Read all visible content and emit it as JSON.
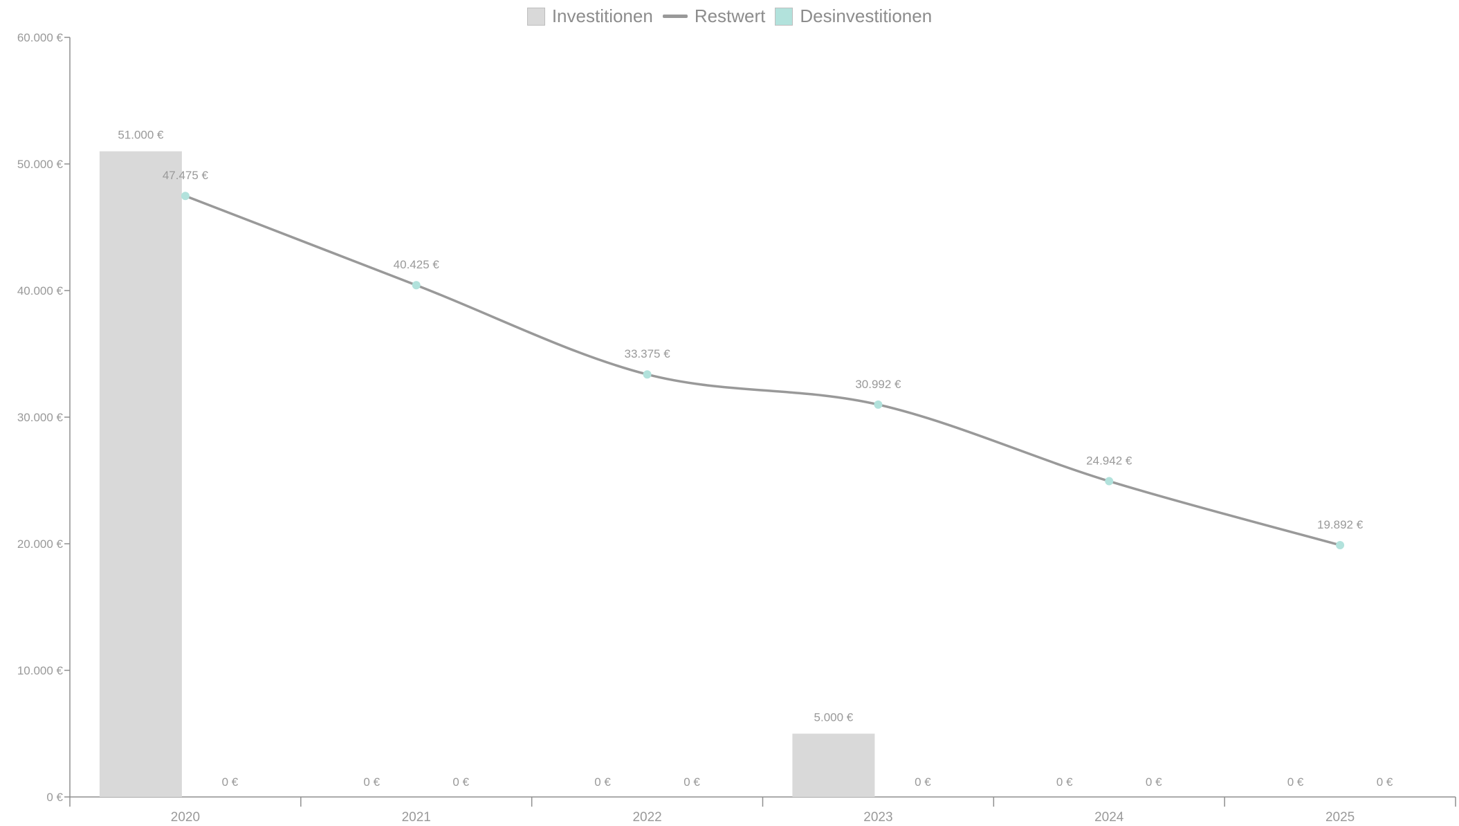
{
  "chart_data": {
    "type": "bar",
    "categories": [
      "2020",
      "2021",
      "2022",
      "2023",
      "2024",
      "2025"
    ],
    "series": [
      {
        "name": "Investitionen",
        "type": "bar",
        "color": "#d9d9d9",
        "values": [
          51000,
          0,
          0,
          5000,
          0,
          0
        ],
        "labels": [
          "51.000 €",
          "0 €",
          "0 €",
          "5.000 €",
          "0 €",
          "0 €"
        ]
      },
      {
        "name": "Restwert",
        "type": "line",
        "color": "#999999",
        "marker_color": "#b2e2dc",
        "values": [
          47475,
          40425,
          33375,
          30992,
          24942,
          19892
        ],
        "labels": [
          "47.475 €",
          "40.425 €",
          "33.375 €",
          "30.992 €",
          "24.942 €",
          "19.892 €"
        ]
      },
      {
        "name": "Desinvestitionen",
        "type": "bar",
        "color": "#b2e2dc",
        "values": [
          0,
          0,
          0,
          0,
          0,
          0
        ],
        "labels": [
          "0 €",
          "0 €",
          "0 €",
          "0 €",
          "0 €",
          "0 €"
        ]
      }
    ],
    "ylim": [
      0,
      60000
    ],
    "yticks": [
      0,
      10000,
      20000,
      30000,
      40000,
      50000,
      60000
    ],
    "ytick_labels": [
      "0 €",
      "10.000 €",
      "20.000 €",
      "30.000 €",
      "40.000 €",
      "50.000 €",
      "60.000 €"
    ],
    "title": "",
    "xlabel": "",
    "ylabel": "",
    "legend_position": "top-center",
    "grid": false
  }
}
